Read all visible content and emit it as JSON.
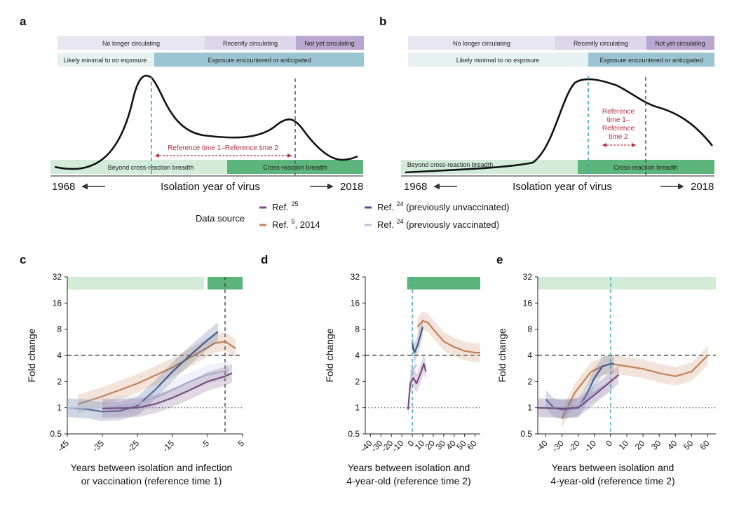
{
  "panels": {
    "a": "a",
    "b": "b",
    "c": "c",
    "d": "d",
    "e": "e"
  },
  "schematic": {
    "bands_top": [
      "No longer circulating",
      "Recently circulating",
      "Not yet circulating"
    ],
    "bands_exposure": [
      "Likely minimal to no exposure",
      "Exposure encountered or anticipated"
    ],
    "bands_breadth": [
      "Beyond cross-reaction breadth",
      "Cross-reaction breadth"
    ],
    "start_year": "1968",
    "end_year": "2018",
    "xlabel": "Isolation year of virus",
    "a_reference_label": "Reference time 1–Reference time 2",
    "b_reference_label": [
      "Reference",
      "time 1–",
      "Reference",
      "time 2"
    ]
  },
  "legend": {
    "title": "Data source",
    "entries": [
      {
        "label": "Ref.",
        "sup": "25",
        "suffix": "",
        "color": "#6e5a6e"
      },
      {
        "label": "Ref.",
        "sup": "5",
        "suffix": ", 2014",
        "color": "#c0825a"
      },
      {
        "label": "Ref.",
        "sup": "24",
        "suffix": " (previously unvaccinated)",
        "color": "#3f5a8c"
      },
      {
        "label": "Ref.",
        "sup": "24",
        "suffix": " (previously vaccinated)",
        "color": "#b8c6dc"
      }
    ]
  },
  "colors": {
    "ref25": "#7a4e82",
    "ref5": "#c28258",
    "ref24_unvacc": "#3f5a8c",
    "ref24_vacc": "#b4c4de",
    "light_green": "#d2ecd9",
    "dark_green": "#5cb57a",
    "teal_dash": "#3aa6b3",
    "purple_dash": "#6b4e8a"
  },
  "chart_data": [
    {
      "panel": "c",
      "type": "line",
      "xlabel": "Years between isolation and infection or vaccination (reference time 1)",
      "xlabel_lines": [
        "Years between isolation and infection",
        "or vaccination (reference time 1)"
      ],
      "ylabel": "Fold change",
      "y_scale": "log2",
      "ylim": [
        0.5,
        32
      ],
      "xlim": [
        -45,
        5
      ],
      "xticks": [
        -45,
        -35,
        -25,
        -15,
        -5,
        5
      ],
      "xtick_labels": [
        "-45",
        "-35",
        "-25",
        "-15",
        "-5",
        "5"
      ],
      "yticks": [
        0.5,
        1,
        2,
        4,
        8,
        16,
        32
      ],
      "ytick_labels": [
        "0.5",
        "1",
        "2",
        "4",
        "8",
        "16",
        "32"
      ],
      "ref_lines": {
        "h_dashed": 4,
        "h_dotted": 1,
        "v_dashed": 0
      },
      "breadth_bars": [
        {
          "from": -45,
          "to": -6,
          "kind": "light"
        },
        {
          "from": -5,
          "to": 5,
          "kind": "dark"
        }
      ],
      "series": [
        {
          "source": "ref5",
          "values": [
            [
              -42,
              1.1
            ],
            [
              -35,
              1.35
            ],
            [
              -25,
              1.9
            ],
            [
              -15,
              2.9
            ],
            [
              -8,
              4.2
            ],
            [
              -3,
              5.5
            ],
            [
              0,
              5.8
            ],
            [
              3,
              4.8
            ]
          ]
        },
        {
          "source": "ref24_unvacc",
          "values": [
            [
              -45,
              1.0
            ],
            [
              -40,
              0.97
            ],
            [
              -35,
              0.9
            ],
            [
              -30,
              0.92
            ],
            [
              -25,
              1.05
            ],
            [
              -20,
              1.6
            ],
            [
              -15,
              2.6
            ],
            [
              -10,
              4.0
            ],
            [
              -5,
              6.0
            ],
            [
              -2,
              7.5
            ]
          ]
        },
        {
          "source": "ref24_vacc",
          "values": [
            [
              -45,
              1.0
            ],
            [
              -35,
              1.0
            ],
            [
              -25,
              1.1
            ],
            [
              -20,
              1.3
            ],
            [
              -15,
              1.6
            ],
            [
              -10,
              2.0
            ],
            [
              -5,
              2.4
            ],
            [
              1,
              2.7
            ]
          ]
        },
        {
          "source": "ref25",
          "values": [
            [
              -35,
              0.98
            ],
            [
              -25,
              1.0
            ],
            [
              -20,
              1.1
            ],
            [
              -15,
              1.3
            ],
            [
              -10,
              1.6
            ],
            [
              -5,
              2.0
            ],
            [
              0,
              2.3
            ],
            [
              2,
              2.5
            ]
          ]
        }
      ]
    },
    {
      "panel": "d",
      "type": "line",
      "xlabel": "Years between isolation and 4-year-old (reference time 2)",
      "xlabel_lines": [
        "Years between isolation and",
        "4-year-old (reference time 2)"
      ],
      "ylabel": "Fold change",
      "y_scale": "log2",
      "ylim": [
        0.5,
        32
      ],
      "xlim": [
        -45,
        65
      ],
      "xticks": [
        -40,
        -30,
        -20,
        -10,
        0,
        10,
        20,
        30,
        40,
        50,
        60
      ],
      "xtick_labels": [
        "-40",
        "-30",
        "-20",
        "-10",
        "0",
        "10",
        "20",
        "30",
        "40",
        "50",
        "60"
      ],
      "yticks": [
        0.5,
        1,
        2,
        4,
        8,
        16,
        32
      ],
      "ytick_labels": [
        "0.5",
        "1",
        "2",
        "4",
        "8",
        "16",
        "32"
      ],
      "ref_lines": {
        "h_dashed": 4,
        "h_dotted": 1,
        "v_dashed": 0
      },
      "breadth_bars": [
        {
          "from": -5,
          "to": 65,
          "kind": "dark"
        }
      ],
      "series": [
        {
          "source": "ref5",
          "values": [
            [
              5,
              8.5
            ],
            [
              10,
              10.0
            ],
            [
              15,
              9.5
            ],
            [
              20,
              8.0
            ],
            [
              30,
              5.8
            ],
            [
              40,
              5.0
            ],
            [
              50,
              4.5
            ],
            [
              60,
              4.3
            ],
            [
              65,
              4.3
            ]
          ]
        },
        {
          "source": "ref24_unvacc",
          "values": [
            [
              0,
              5.5
            ],
            [
              2,
              4.3
            ],
            [
              5,
              5.2
            ],
            [
              8,
              7.0
            ],
            [
              10,
              8.5
            ]
          ]
        },
        {
          "source": "ref24_vacc",
          "values": [
            [
              -2,
              2.6
            ],
            [
              1,
              2.8
            ],
            [
              4,
              3.1
            ]
          ]
        },
        {
          "source": "ref25",
          "values": [
            [
              -4,
              0.95
            ],
            [
              -2,
              1.9
            ],
            [
              1,
              2.2
            ],
            [
              4,
              1.9
            ],
            [
              8,
              2.5
            ],
            [
              11,
              3.2
            ],
            [
              13,
              2.6
            ]
          ]
        }
      ]
    },
    {
      "panel": "e",
      "type": "line",
      "xlabel": "Years between isolation and 4-year-old (reference time 2)",
      "xlabel_lines": [
        "Years between isolation and",
        "4-year-old (reference time 2)"
      ],
      "ylabel": "Fold change",
      "y_scale": "log2",
      "ylim": [
        0.5,
        32
      ],
      "xlim": [
        -45,
        65
      ],
      "xticks": [
        -40,
        -30,
        -20,
        -10,
        0,
        10,
        20,
        30,
        40,
        50,
        60
      ],
      "xtick_labels": [
        "-40",
        "-30",
        "-20",
        "-10",
        "0",
        "10",
        "20",
        "30",
        "40",
        "50",
        "60"
      ],
      "yticks": [
        0.5,
        1,
        2,
        4,
        8,
        16,
        32
      ],
      "ytick_labels": [
        "0.5",
        "1",
        "2",
        "4",
        "8",
        "16",
        "32"
      ],
      "ref_lines": {
        "h_dashed": 4,
        "h_dotted": 1,
        "v_dashed": 0
      },
      "breadth_bars": [
        {
          "from": -45,
          "to": 65,
          "kind": "light"
        }
      ],
      "series": [
        {
          "source": "ref5",
          "values": [
            [
              -30,
              0.75
            ],
            [
              -22,
              1.5
            ],
            [
              -12,
              2.6
            ],
            [
              -5,
              3.0
            ],
            [
              0,
              3.2
            ],
            [
              10,
              3.0
            ],
            [
              20,
              2.8
            ],
            [
              30,
              2.5
            ],
            [
              40,
              2.3
            ],
            [
              50,
              2.6
            ],
            [
              60,
              4.0
            ]
          ]
        },
        {
          "source": "ref24_unvacc",
          "values": [
            [
              -40,
              1.25
            ],
            [
              -35,
              1.0
            ],
            [
              -30,
              0.95
            ],
            [
              -20,
              1.0
            ],
            [
              -15,
              1.4
            ],
            [
              -10,
              2.2
            ],
            [
              -5,
              3.0
            ],
            [
              0,
              3.2
            ],
            [
              2,
              3.2
            ]
          ]
        },
        {
          "source": "ref24_vacc",
          "values": [
            [
              -45,
              1.0
            ],
            [
              -30,
              1.0
            ],
            [
              -20,
              1.05
            ],
            [
              -10,
              1.5
            ],
            [
              0,
              2.0
            ],
            [
              2,
              2.1
            ]
          ]
        },
        {
          "source": "ref25",
          "values": [
            [
              -45,
              1.0
            ],
            [
              -30,
              0.98
            ],
            [
              -20,
              1.0
            ],
            [
              -10,
              1.4
            ],
            [
              0,
              2.0
            ],
            [
              5,
              2.4
            ]
          ]
        }
      ]
    }
  ]
}
